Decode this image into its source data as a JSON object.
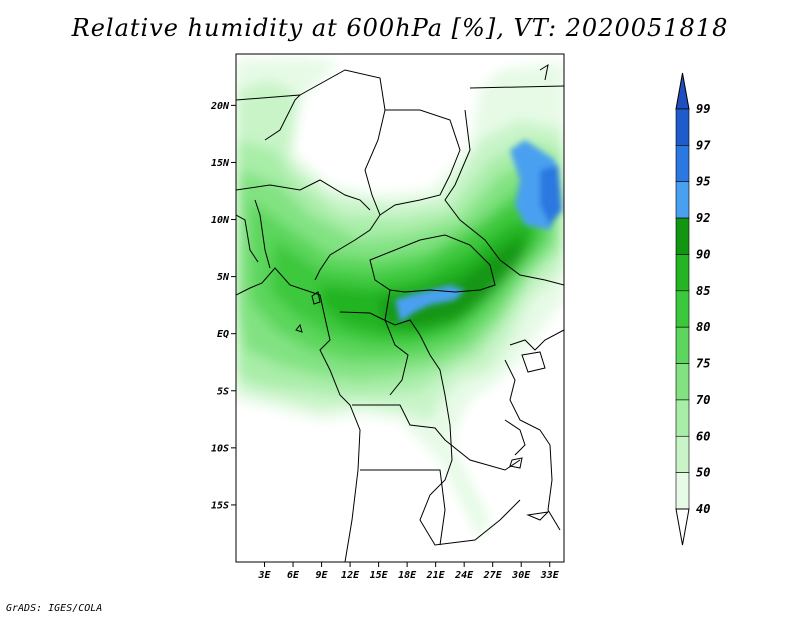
{
  "title": "Relative humidity at 600hPa [%], VT: 2020051818",
  "footer": "GrADS: IGES/COLA",
  "map": {
    "lon_range": [
      0,
      34.5
    ],
    "lat_range": [
      -20,
      24.5
    ],
    "lon_ticks": [
      3,
      6,
      9,
      12,
      15,
      18,
      21,
      24,
      27,
      30,
      33
    ],
    "lon_tick_labels": [
      "3E",
      "6E",
      "9E",
      "12E",
      "15E",
      "18E",
      "21E",
      "24E",
      "27E",
      "30E",
      "33E"
    ],
    "lat_ticks": [
      20,
      15,
      10,
      5,
      0,
      -5,
      -10,
      -15
    ],
    "lat_tick_labels": [
      "20N",
      "15N",
      "10N",
      "5N",
      "EQ",
      "5S",
      "10S",
      "15S"
    ]
  },
  "colorbar": {
    "levels": [
      "99",
      "97",
      "95",
      "92",
      "90",
      "85",
      "80",
      "75",
      "70",
      "60",
      "50",
      "40"
    ],
    "colors": [
      "#ffffff",
      "#e6fae6",
      "#c8f4c8",
      "#a8eda8",
      "#82e282",
      "#5cd65c",
      "#3cc83c",
      "#24b424",
      "#129612",
      "#4aa0f0",
      "#2a78e0",
      "#1e5ccc",
      "#1e4ec0"
    ]
  },
  "colors": {
    "border": "#000000",
    "background": "#ffffff"
  }
}
